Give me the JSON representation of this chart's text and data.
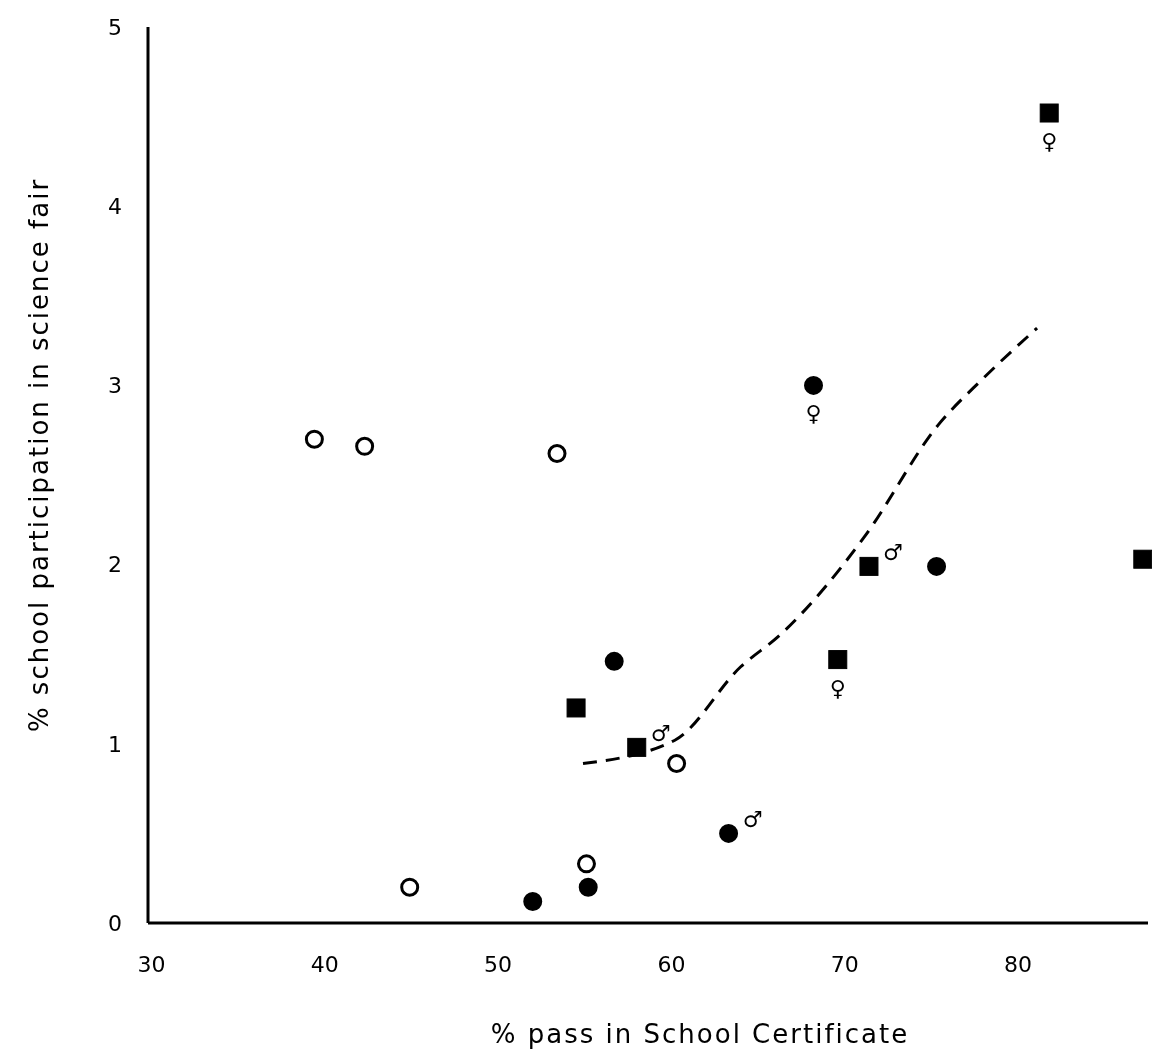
{
  "chart_data": {
    "type": "scatter",
    "xlabel": "% pass in School Certificate",
    "ylabel": "% school participation in science fair",
    "xlim": [
      29.8,
      87.5
    ],
    "ylim": [
      0,
      5
    ],
    "xticks": [
      30,
      40,
      50,
      60,
      70,
      80
    ],
    "yticks": [
      0,
      1,
      2,
      3,
      4,
      5
    ],
    "grid": false,
    "series": [
      {
        "color": "#ffffff",
        "marker": "circle",
        "x": [
          39.4,
          42.3,
          53.4,
          44.9,
          55.1,
          60.3
        ],
        "values": [
          2.7,
          2.66,
          2.62,
          0.2,
          0.33,
          0.89
        ]
      },
      {
        "color": "#000000",
        "marker": "circle",
        "x": [
          52.0,
          55.2,
          56.7,
          63.3,
          68.2,
          75.3
        ],
        "values": [
          0.12,
          0.2,
          1.46,
          0.5,
          3.0,
          1.99
        ]
      },
      {
        "color": "#000000",
        "marker": "square",
        "x": [
          54.5,
          58.0,
          71.4,
          69.6,
          81.8,
          87.2
        ],
        "values": [
          1.2,
          0.98,
          1.99,
          1.47,
          4.52,
          2.03
        ]
      },
      {
        "type": "line",
        "color": "#000000",
        "marker": "none",
        "line_style": "dashed",
        "x": [
          54.9,
          60.2,
          64.0,
          66.3,
          71.1,
          75.4,
          78.0,
          81.1
        ],
        "values": [
          0.89,
          1.02,
          1.43,
          1.61,
          2.15,
          2.78,
          3.04,
          3.32
        ]
      }
    ],
    "annotations": [
      {
        "text": "♂",
        "x": 63.3,
        "y": 0.5
      },
      {
        "text": "♂",
        "x": 58.0,
        "y": 0.98
      },
      {
        "text": "♂",
        "x": 71.4,
        "y": 1.99
      },
      {
        "text": "♀",
        "x": 68.2,
        "y": 3.0
      },
      {
        "text": "♀",
        "x": 69.6,
        "y": 1.47
      },
      {
        "text": "♀",
        "x": 81.8,
        "y": 4.52
      }
    ]
  }
}
